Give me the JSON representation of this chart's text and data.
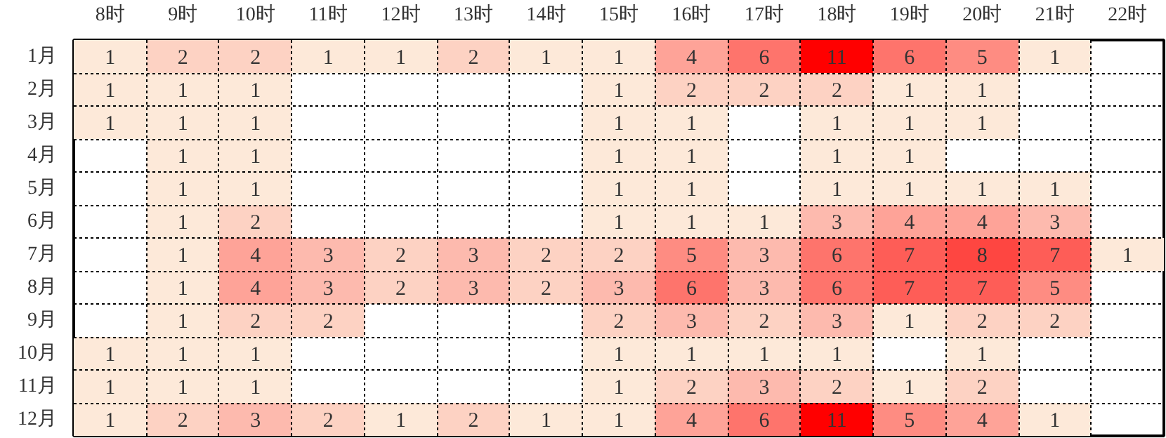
{
  "chart_data": {
    "type": "heatmap",
    "categories": [
      "8时",
      "9时",
      "10时",
      "11时",
      "12时",
      "13时",
      "14时",
      "15时",
      "16时",
      "17时",
      "18时",
      "19时",
      "20时",
      "21时",
      "22时"
    ],
    "y_categories": [
      "1月",
      "2月",
      "3月",
      "4月",
      "5月",
      "6月",
      "7月",
      "8月",
      "9月",
      "10月",
      "11月",
      "12月"
    ],
    "cells": [
      [
        1,
        2,
        2,
        1,
        1,
        2,
        1,
        1,
        4,
        6,
        11,
        6,
        5,
        1,
        null
      ],
      [
        1,
        1,
        1,
        null,
        null,
        null,
        null,
        1,
        2,
        2,
        2,
        1,
        1,
        null,
        null
      ],
      [
        1,
        1,
        1,
        null,
        null,
        null,
        null,
        1,
        1,
        null,
        1,
        1,
        1,
        null,
        null
      ],
      [
        null,
        1,
        1,
        null,
        null,
        null,
        null,
        1,
        1,
        null,
        1,
        1,
        null,
        null,
        null
      ],
      [
        null,
        1,
        1,
        null,
        null,
        null,
        null,
        1,
        1,
        null,
        1,
        1,
        1,
        1,
        null
      ],
      [
        null,
        1,
        2,
        null,
        null,
        null,
        null,
        1,
        1,
        1,
        3,
        4,
        4,
        3,
        null
      ],
      [
        null,
        1,
        4,
        3,
        2,
        3,
        2,
        2,
        5,
        3,
        6,
        7,
        8,
        7,
        1
      ],
      [
        null,
        1,
        4,
        3,
        2,
        3,
        2,
        3,
        6,
        3,
        6,
        7,
        7,
        5,
        null
      ],
      [
        null,
        1,
        2,
        2,
        null,
        null,
        null,
        2,
        3,
        2,
        3,
        1,
        2,
        2,
        null
      ],
      [
        1,
        1,
        1,
        null,
        null,
        null,
        null,
        1,
        1,
        1,
        1,
        null,
        1,
        null,
        null
      ],
      [
        1,
        1,
        1,
        null,
        null,
        null,
        null,
        1,
        2,
        3,
        2,
        1,
        2,
        null,
        null
      ],
      [
        1,
        2,
        3,
        2,
        1,
        2,
        1,
        1,
        4,
        6,
        11,
        5,
        4,
        1,
        null
      ]
    ],
    "colors": [
      "#fde9d9",
      "#ff0000"
    ],
    "data_labels": true,
    "grid": true
  }
}
